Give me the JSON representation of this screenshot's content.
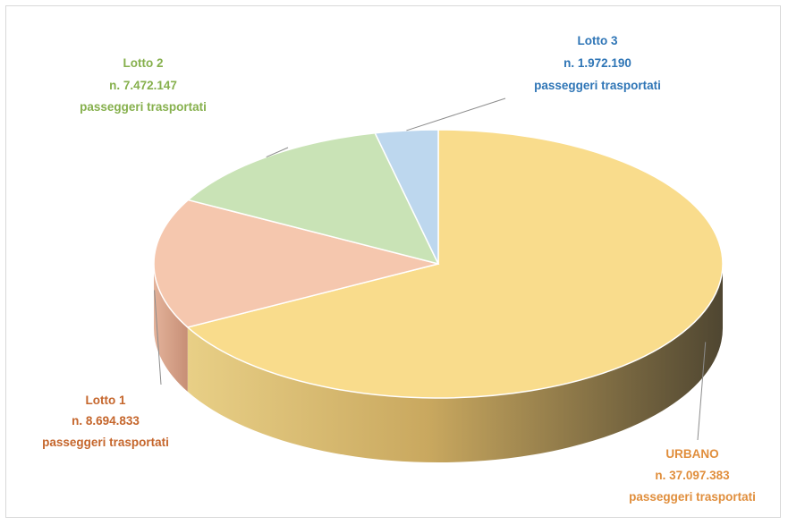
{
  "chart_data": {
    "type": "pie",
    "style": "3d",
    "title": "",
    "series": [
      {
        "name": "URBANO",
        "count_text": "n. 37.097.383",
        "value": 37097383,
        "caption": "passeggeri trasportati",
        "color": "#F9DC8C",
        "label_color": "#E08E3C"
      },
      {
        "name": "Lotto 1",
        "count_text": "n. 8.694.833",
        "value": 8694833,
        "caption": "passeggeri trasportati",
        "color": "#F5C7AE",
        "label_color": "#C5662C"
      },
      {
        "name": "Lotto 2",
        "count_text": "n. 7.472.147",
        "value": 7472147,
        "caption": "passeggeri trasportati",
        "color": "#C9E3B6",
        "label_color": "#86B04D"
      },
      {
        "name": "Lotto 3",
        "count_text": "n. 1.972.190",
        "value": 1972190,
        "caption": "passeggeri trasportati",
        "color": "#BDD7EE",
        "label_color": "#2E75B6"
      }
    ],
    "legend": "none",
    "start_angle_deg": -90,
    "direction": "clockwise"
  }
}
